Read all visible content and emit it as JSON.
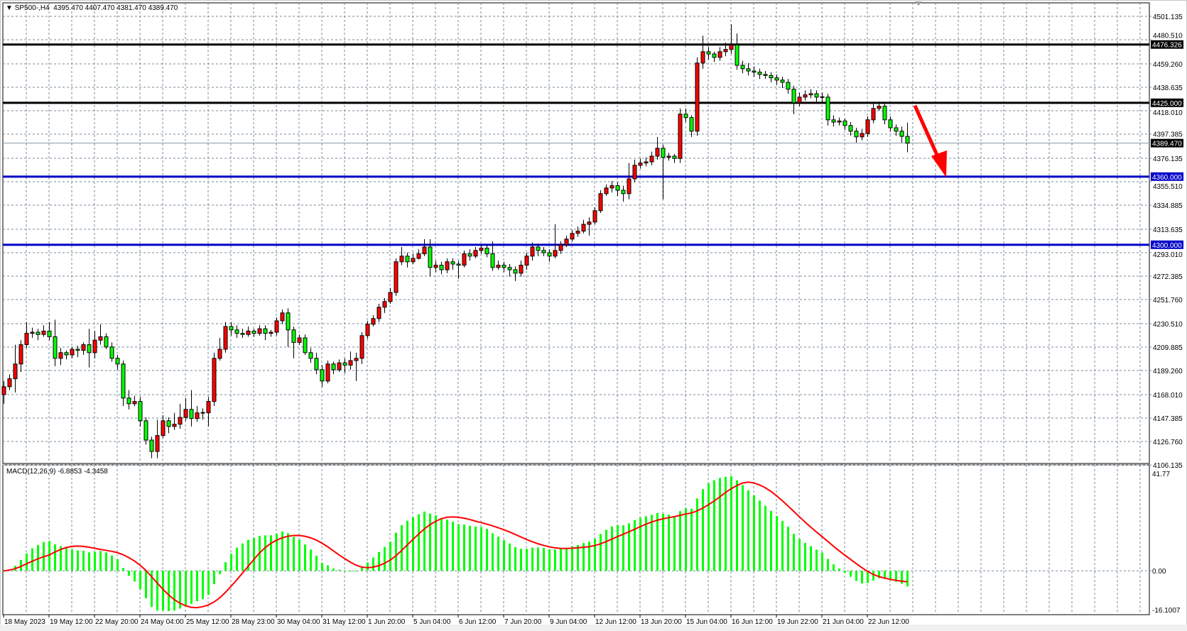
{
  "header": {
    "symbol": "SP500-,H4",
    "ohlc": "4395.470 4407.470 4381.470 4389.470",
    "menu_icon": "triangle-down-icon"
  },
  "macd_header": "MACD(12,26,9) -6.8853 -4.3458",
  "colors": {
    "bull_candle": "#ff0000",
    "bear_candle": "#00ff00",
    "resistance_lines": "#000000",
    "support_lines": "#0000c8",
    "macd_histogram": "#00ff00",
    "macd_signal": "#ff0000",
    "arrow": "#ff0000",
    "grid": "#778899"
  },
  "chart_data": [
    {
      "type": "candlestick",
      "symbol": "SP500-",
      "timeframe": "H4",
      "ylim": [
        4106.135,
        4501.135
      ],
      "grid": true,
      "price_ticks": [
        "4501.135",
        "4480.510",
        "4459.260",
        "4438.635",
        "4418.010",
        "4397.385",
        "4376.135",
        "4355.510",
        "4334.885",
        "4313.635",
        "4293.010",
        "4272.385",
        "4251.760",
        "4230.510",
        "4209.885",
        "4189.260",
        "4168.010",
        "4147.385",
        "4126.760",
        "4106.135"
      ],
      "time_labels": [
        "18 May 2023",
        "19 May 12:00",
        "22 May 20:00",
        "24 May 04:00",
        "25 May 12:00",
        "28 May 23:00",
        "30 May 04:00",
        "31 May 12:00",
        "1 Jun 20:00",
        "5 Jun 04:00",
        "6 Jun 12:00",
        "7 Jun 20:00",
        "9 Jun 04:00",
        "12 Jun 12:00",
        "13 Jun 20:00",
        "15 Jun 04:00",
        "16 Jun 12:00",
        "19 Jun 22:00",
        "21 Jun 04:00",
        "22 Jun 12:00"
      ],
      "horizontal_levels": [
        {
          "price": 4476.326,
          "label": "4476.326",
          "color": "#000000"
        },
        {
          "price": 4425.0,
          "label": "4425.000",
          "color": "#000000"
        },
        {
          "price": 4360.0,
          "label": "4360.000",
          "color": "#0000c8"
        },
        {
          "price": 4300.0,
          "label": "4300.000",
          "color": "#0000c8"
        }
      ],
      "current_price": {
        "price": 4389.47,
        "label": "4389.470"
      },
      "arrow": {
        "from_candle": 160,
        "from_price": 4425,
        "to_candle": 165,
        "to_price": 4360,
        "direction": "down"
      },
      "candles_ohlc": [
        [
          4168,
          4180,
          4160,
          4175
        ],
        [
          4175,
          4186,
          4172,
          4182
        ],
        [
          4182,
          4212,
          4170,
          4195
        ],
        [
          4195,
          4216,
          4188,
          4212
        ],
        [
          4212,
          4232,
          4209,
          4222
        ],
        [
          4222,
          4227,
          4218,
          4223
        ],
        [
          4223,
          4226,
          4216,
          4221
        ],
        [
          4221,
          4229,
          4219,
          4224
        ],
        [
          4224,
          4232,
          4216,
          4219
        ],
        [
          4219,
          4234,
          4193,
          4200
        ],
        [
          4200,
          4209,
          4194,
          4205
        ],
        [
          4205,
          4207,
          4199,
          4203
        ],
        [
          4203,
          4210,
          4200,
          4208
        ],
        [
          4208,
          4211,
          4201,
          4207
        ],
        [
          4207,
          4214,
          4203,
          4212
        ],
        [
          4212,
          4226,
          4192,
          4205
        ],
        [
          4205,
          4224,
          4200,
          4216
        ],
        [
          4216,
          4230,
          4212,
          4219
        ],
        [
          4219,
          4222,
          4208,
          4210
        ],
        [
          4210,
          4214,
          4197,
          4200
        ],
        [
          4200,
          4203,
          4190,
          4195
        ],
        [
          4195,
          4198,
          4158,
          4165
        ],
        [
          4165,
          4172,
          4155,
          4160
        ],
        [
          4160,
          4167,
          4158,
          4162
        ],
        [
          4162,
          4166,
          4140,
          4145
        ],
        [
          4145,
          4148,
          4124,
          4128
        ],
        [
          4128,
          4131,
          4112,
          4118
        ],
        [
          4118,
          4146,
          4112,
          4132
        ],
        [
          4132,
          4150,
          4130,
          4145
        ],
        [
          4145,
          4148,
          4134,
          4140
        ],
        [
          4140,
          4152,
          4137,
          4142
        ],
        [
          4142,
          4160,
          4138,
          4148
        ],
        [
          4148,
          4165,
          4145,
          4155
        ],
        [
          4155,
          4172,
          4140,
          4147
        ],
        [
          4147,
          4158,
          4144,
          4152
        ],
        [
          4152,
          4156,
          4146,
          4152
        ],
        [
          4152,
          4166,
          4140,
          4162
        ],
        [
          4162,
          4205,
          4158,
          4200
        ],
        [
          4200,
          4218,
          4198,
          4208
        ],
        [
          4208,
          4232,
          4205,
          4228
        ],
        [
          4228,
          4232,
          4220,
          4225
        ],
        [
          4225,
          4229,
          4218,
          4222
        ],
        [
          4222,
          4226,
          4218,
          4221
        ],
        [
          4221,
          4228,
          4219,
          4224
        ],
        [
          4224,
          4226,
          4219,
          4222
        ],
        [
          4222,
          4229,
          4220,
          4226
        ],
        [
          4226,
          4229,
          4216,
          4222
        ],
        [
          4222,
          4225,
          4219,
          4223
        ],
        [
          4223,
          4236,
          4220,
          4233
        ],
        [
          4233,
          4243,
          4230,
          4240
        ],
        [
          4240,
          4244,
          4210,
          4225
        ],
        [
          4225,
          4228,
          4200,
          4214
        ],
        [
          4214,
          4221,
          4212,
          4218
        ],
        [
          4218,
          4221,
          4203,
          4205
        ],
        [
          4205,
          4209,
          4196,
          4200
        ],
        [
          4200,
          4205,
          4186,
          4190
        ],
        [
          4190,
          4194,
          4175,
          4180
        ],
        [
          4180,
          4198,
          4178,
          4195
        ],
        [
          4195,
          4197,
          4186,
          4190
        ],
        [
          4190,
          4199,
          4188,
          4196
        ],
        [
          4196,
          4200,
          4187,
          4194
        ],
        [
          4194,
          4206,
          4190,
          4198
        ],
        [
          4198,
          4205,
          4180,
          4200
        ],
        [
          4200,
          4223,
          4195,
          4220
        ],
        [
          4220,
          4233,
          4217,
          4230
        ],
        [
          4230,
          4238,
          4228,
          4235
        ],
        [
          4235,
          4248,
          4232,
          4245
        ],
        [
          4245,
          4253,
          4240,
          4250
        ],
        [
          4250,
          4262,
          4248,
          4258
        ],
        [
          4258,
          4288,
          4255,
          4285
        ],
        [
          4285,
          4298,
          4282,
          4290
        ],
        [
          4290,
          4293,
          4280,
          4285
        ],
        [
          4285,
          4292,
          4283,
          4288
        ],
        [
          4288,
          4296,
          4287,
          4292
        ],
        [
          4292,
          4305,
          4290,
          4298
        ],
        [
          4298,
          4305,
          4272,
          4280
        ],
        [
          4280,
          4286,
          4276,
          4282
        ],
        [
          4282,
          4285,
          4274,
          4278
        ],
        [
          4278,
          4288,
          4275,
          4285
        ],
        [
          4285,
          4288,
          4278,
          4283
        ],
        [
          4283,
          4286,
          4270,
          4282
        ],
        [
          4282,
          4295,
          4280,
          4292
        ],
        [
          4292,
          4296,
          4286,
          4290
        ],
        [
          4290,
          4298,
          4288,
          4295
        ],
        [
          4295,
          4300,
          4292,
          4297
        ],
        [
          4297,
          4300,
          4289,
          4292
        ],
        [
          4292,
          4303,
          4277,
          4280
        ],
        [
          4280,
          4286,
          4278,
          4282
        ],
        [
          4282,
          4285,
          4276,
          4280
        ],
        [
          4280,
          4283,
          4272,
          4278
        ],
        [
          4278,
          4281,
          4268,
          4275
        ],
        [
          4275,
          4286,
          4272,
          4282
        ],
        [
          4282,
          4293,
          4278,
          4290
        ],
        [
          4290,
          4302,
          4286,
          4298
        ],
        [
          4298,
          4301,
          4290,
          4295
        ],
        [
          4295,
          4298,
          4290,
          4293
        ],
        [
          4293,
          4296,
          4285,
          4290
        ],
        [
          4290,
          4318,
          4288,
          4295
        ],
        [
          4295,
          4303,
          4292,
          4300
        ],
        [
          4300,
          4308,
          4298,
          4305
        ],
        [
          4305,
          4313,
          4303,
          4310
        ],
        [
          4310,
          4316,
          4307,
          4312
        ],
        [
          4312,
          4322,
          4310,
          4318
        ],
        [
          4318,
          4324,
          4308,
          4320
        ],
        [
          4320,
          4333,
          4318,
          4330
        ],
        [
          4330,
          4348,
          4328,
          4345
        ],
        [
          4345,
          4353,
          4343,
          4350
        ],
        [
          4350,
          4356,
          4346,
          4352
        ],
        [
          4352,
          4355,
          4343,
          4348
        ],
        [
          4348,
          4352,
          4338,
          4345
        ],
        [
          4345,
          4372,
          4340,
          4358
        ],
        [
          4358,
          4375,
          4355,
          4370
        ],
        [
          4370,
          4376,
          4367,
          4372
        ],
        [
          4372,
          4377,
          4369,
          4373
        ],
        [
          4373,
          4382,
          4370,
          4378
        ],
        [
          4378,
          4395,
          4375,
          4385
        ],
        [
          4385,
          4388,
          4340,
          4377
        ],
        [
          4377,
          4381,
          4374,
          4378
        ],
        [
          4378,
          4380,
          4372,
          4376
        ],
        [
          4376,
          4420,
          4372,
          4415
        ],
        [
          4415,
          4420,
          4408,
          4412
        ],
        [
          4412,
          4414,
          4395,
          4400
        ],
        [
          4400,
          4465,
          4396,
          4460
        ],
        [
          4460,
          4484,
          4455,
          4470
        ],
        [
          4470,
          4474,
          4463,
          4468
        ],
        [
          4468,
          4470,
          4461,
          4465
        ],
        [
          4465,
          4474,
          4462,
          4470
        ],
        [
          4470,
          4478,
          4466,
          4472
        ],
        [
          4472,
          4494,
          4468,
          4476
        ],
        [
          4476,
          4486,
          4454,
          4458
        ],
        [
          4458,
          4462,
          4451,
          4455
        ],
        [
          4455,
          4460,
          4449,
          4453
        ],
        [
          4453,
          4457,
          4448,
          4452
        ],
        [
          4452,
          4455,
          4446,
          4450
        ],
        [
          4450,
          4453,
          4446,
          4449
        ],
        [
          4449,
          4452,
          4443,
          4447
        ],
        [
          4447,
          4450,
          4441,
          4445
        ],
        [
          4445,
          4448,
          4438,
          4443
        ],
        [
          4443,
          4446,
          4433,
          4437
        ],
        [
          4437,
          4440,
          4415,
          4425
        ],
        [
          4425,
          4434,
          4422,
          4430
        ],
        [
          4430,
          4436,
          4427,
          4432
        ],
        [
          4432,
          4437,
          4429,
          4433
        ],
        [
          4433,
          4436,
          4426,
          4430
        ],
        [
          4430,
          4434,
          4425,
          4430
        ],
        [
          4430,
          4433,
          4405,
          4410
        ],
        [
          4410,
          4414,
          4404,
          4408
        ],
        [
          4408,
          4412,
          4405,
          4409
        ],
        [
          4409,
          4411,
          4401,
          4405
        ],
        [
          4405,
          4408,
          4396,
          4400
        ],
        [
          4400,
          4403,
          4390,
          4395
        ],
        [
          4395,
          4402,
          4392,
          4398
        ],
        [
          4398,
          4413,
          4395,
          4410
        ],
        [
          4410,
          4425,
          4407,
          4420
        ],
        [
          4420,
          4426,
          4418,
          4422
        ],
        [
          4422,
          4424,
          4406,
          4410
        ],
        [
          4410,
          4413,
          4400,
          4403
        ],
        [
          4403,
          4406,
          4396,
          4400
        ],
        [
          4400,
          4404,
          4390,
          4395.47
        ],
        [
          4395.47,
          4407.47,
          4381.47,
          4389.47
        ]
      ]
    },
    {
      "type": "bar+line",
      "indicator": "MACD",
      "params": {
        "fast": 12,
        "slow": 26,
        "signal": 9
      },
      "current_macd": -6.8853,
      "current_signal": -4.3458,
      "ylim": [
        -16.1007,
        41.77
      ],
      "tick_labels": [
        "41.77",
        "0.00",
        "-16.1007"
      ]
    }
  ]
}
